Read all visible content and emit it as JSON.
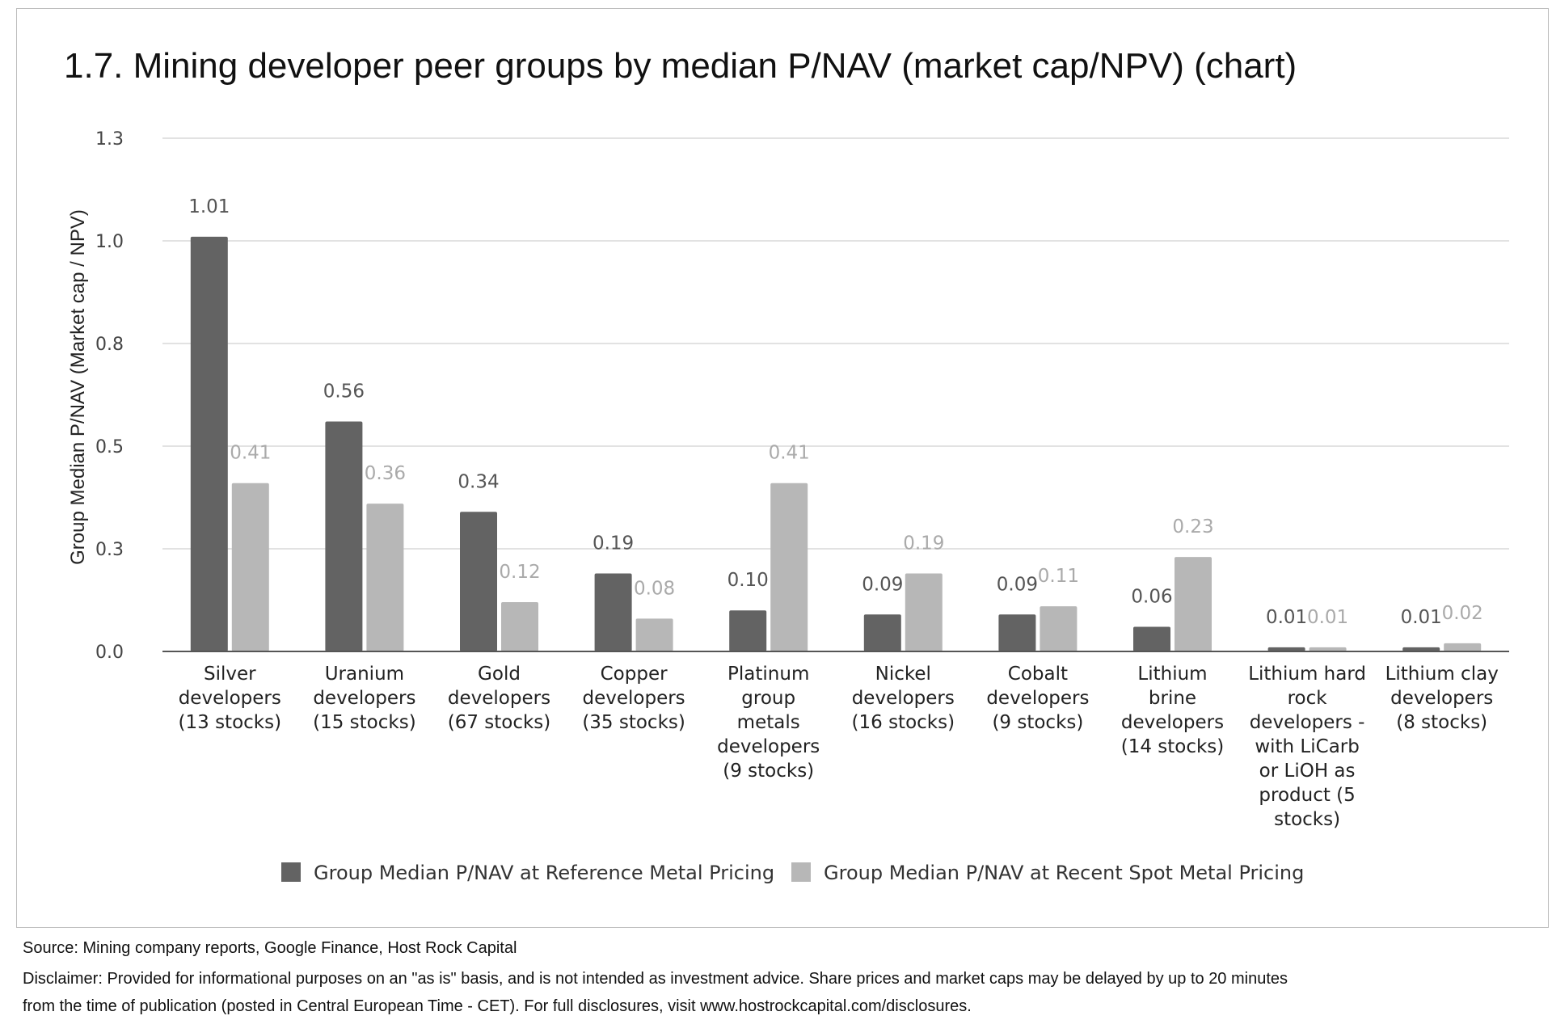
{
  "chart_data": {
    "type": "bar",
    "title": "1.7. Mining developer peer groups by median P/NAV (market cap/NPV) (chart)",
    "xlabel": "",
    "ylabel": "Group Median P/NAV (Market cap / NPV)",
    "ylim": [
      0,
      1.25
    ],
    "yticks": [
      0.0,
      0.25,
      0.5,
      0.75,
      1.0,
      1.25
    ],
    "ytick_labels": [
      "0.0",
      "0.3",
      "0.5",
      "0.8",
      "1.0",
      "1.3"
    ],
    "grid": true,
    "legend_position": "bottom",
    "categories": [
      "Silver developers (13 stocks)",
      "Uranium developers (15 stocks)",
      "Gold developers (67 stocks)",
      "Copper developers (35 stocks)",
      "Platinum group metals developers (9 stocks)",
      "Nickel developers (16 stocks)",
      "Cobalt developers (9 stocks)",
      "Lithium brine developers (14 stocks)",
      "Lithium hard rock developers - with LiCarb or LiOH as product (5 stocks)",
      "Lithium clay developers (8 stocks)"
    ],
    "category_lines": [
      [
        "Silver",
        "developers",
        "(13 stocks)"
      ],
      [
        "Uranium",
        "developers",
        "(15 stocks)"
      ],
      [
        "Gold",
        "developers",
        "(67 stocks)"
      ],
      [
        "Copper",
        "developers",
        "(35 stocks)"
      ],
      [
        "Platinum",
        "group",
        "metals",
        "developers",
        "(9 stocks)"
      ],
      [
        "Nickel",
        "developers",
        "(16 stocks)"
      ],
      [
        "Cobalt",
        "developers",
        "(9 stocks)"
      ],
      [
        "Lithium",
        "brine",
        "developers",
        "(14 stocks)"
      ],
      [
        "Lithium hard",
        "rock",
        "developers -",
        "with LiCarb",
        "or LiOH as",
        "product (5",
        "stocks)"
      ],
      [
        "Lithium clay",
        "developers",
        "(8 stocks)"
      ]
    ],
    "series": [
      {
        "name": "Group Median P/NAV at Reference Metal Pricing",
        "color": "#636363",
        "values": [
          1.01,
          0.56,
          0.34,
          0.19,
          0.1,
          0.09,
          0.09,
          0.06,
          0.01,
          0.01
        ],
        "labels": [
          "1.01",
          "0.56",
          "0.34",
          "0.19",
          "0.10",
          "0.09",
          "0.09",
          "0.06",
          "0.01",
          "0.01"
        ]
      },
      {
        "name": "Group Median P/NAV at Recent Spot Metal Pricing",
        "color": "#b7b7b7",
        "values": [
          0.41,
          0.36,
          0.12,
          0.08,
          0.41,
          0.19,
          0.11,
          0.23,
          0.01,
          0.02
        ],
        "labels": [
          "0.41",
          "0.36",
          "0.12",
          "0.08",
          "0.41",
          "0.19",
          "0.11",
          "0.23",
          "0.01",
          "0.02"
        ]
      }
    ]
  },
  "footer": {
    "source": "Source: Mining company reports, Google Finance, Host Rock Capital",
    "disclaimer_line1": "Disclaimer: Provided for informational purposes on an \"as is\" basis, and is not intended as investment advice. Share prices and market caps may be delayed by up to 20 minutes",
    "disclaimer_line2": "from the time of publication (posted in Central European Time - CET). For full disclosures, visit www.hostrockcapital.com/disclosures."
  }
}
